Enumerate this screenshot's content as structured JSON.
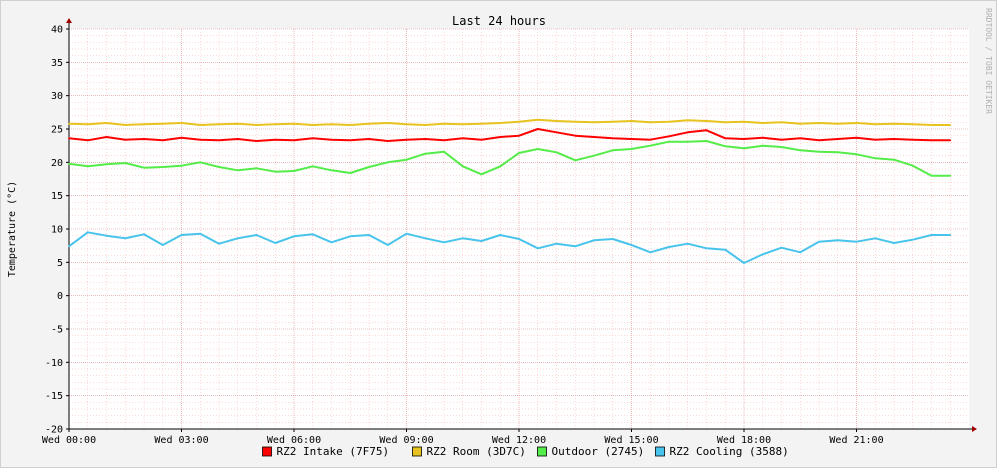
{
  "chart_data": {
    "type": "line",
    "title": "Last 24 hours",
    "ylabel": "Temperature (°C)",
    "xlabel": "",
    "watermark": "RRDTOOL / TOBI OETIKER",
    "ylim": [
      -20,
      40
    ],
    "yticks": [
      40,
      35,
      30,
      25,
      20,
      15,
      10,
      5,
      0,
      -5,
      -10,
      -15,
      -20
    ],
    "xlim": [
      0,
      24
    ],
    "xticks": [
      {
        "value": 0,
        "label": "Wed 00:00"
      },
      {
        "value": 3,
        "label": "Wed 03:00"
      },
      {
        "value": 6,
        "label": "Wed 06:00"
      },
      {
        "value": 9,
        "label": "Wed 09:00"
      },
      {
        "value": 12,
        "label": "Wed 12:00"
      },
      {
        "value": 15,
        "label": "Wed 15:00"
      },
      {
        "value": 18,
        "label": "Wed 18:00"
      },
      {
        "value": 21,
        "label": "Wed 21:00"
      }
    ],
    "grid": true,
    "legend_position": "bottom",
    "x": [
      0,
      0.5,
      1,
      1.5,
      2,
      2.5,
      3,
      3.5,
      4,
      4.5,
      5,
      5.5,
      6,
      6.5,
      7,
      7.5,
      8,
      8.5,
      9,
      9.5,
      10,
      10.5,
      11,
      11.5,
      12,
      12.5,
      13,
      13.5,
      14,
      14.5,
      15,
      15.5,
      16,
      16.5,
      17,
      17.5,
      18,
      18.5,
      19,
      19.5,
      20,
      20.5,
      21,
      21.5,
      22,
      22.5,
      23,
      23.5
    ],
    "series": [
      {
        "name": "RZ2 Intake (7F75)",
        "color": "#ff0000",
        "values": [
          23.6,
          23.3,
          23.8,
          23.4,
          23.5,
          23.3,
          23.7,
          23.4,
          23.3,
          23.5,
          23.2,
          23.4,
          23.3,
          23.6,
          23.4,
          23.3,
          23.5,
          23.2,
          23.4,
          23.5,
          23.3,
          23.6,
          23.4,
          23.8,
          24.0,
          25.0,
          24.5,
          24.0,
          23.8,
          23.6,
          23.5,
          23.4,
          23.9,
          24.5,
          24.8,
          23.6,
          23.5,
          23.7,
          23.4,
          23.6,
          23.3,
          23.5,
          23.7,
          23.4,
          23.5,
          23.4,
          23.3,
          23.3
        ]
      },
      {
        "name": "RZ2 Room (3D7C)",
        "color": "#e6c31e",
        "values": [
          25.8,
          25.7,
          25.9,
          25.6,
          25.7,
          25.8,
          25.9,
          25.6,
          25.7,
          25.8,
          25.6,
          25.7,
          25.8,
          25.6,
          25.7,
          25.6,
          25.8,
          25.9,
          25.7,
          25.6,
          25.8,
          25.7,
          25.8,
          25.9,
          26.1,
          26.4,
          26.2,
          26.1,
          26.0,
          26.1,
          26.2,
          26.0,
          26.1,
          26.3,
          26.2,
          26.0,
          26.1,
          25.9,
          26.0,
          25.8,
          25.9,
          25.8,
          25.9,
          25.7,
          25.8,
          25.7,
          25.6,
          25.6
        ]
      },
      {
        "name": "Outdoor (2745)",
        "color": "#54ec48",
        "values": [
          19.8,
          19.4,
          19.7,
          19.9,
          19.2,
          19.3,
          19.5,
          20.0,
          19.3,
          18.8,
          19.1,
          18.6,
          18.7,
          19.4,
          18.8,
          18.4,
          19.3,
          20.0,
          20.4,
          21.3,
          21.6,
          19.4,
          18.2,
          19.4,
          21.4,
          22.0,
          21.5,
          20.3,
          21.0,
          21.8,
          22.0,
          22.5,
          23.1,
          23.1,
          23.2,
          22.4,
          22.1,
          22.5,
          22.3,
          21.8,
          21.6,
          21.5,
          21.2,
          20.6,
          20.4,
          19.5,
          18.0,
          18.0
        ]
      },
      {
        "name": "RZ2 Cooling (3588)",
        "color": "#48c4ec",
        "values": [
          7.4,
          9.5,
          9.0,
          8.6,
          9.2,
          7.6,
          9.1,
          9.3,
          7.8,
          8.6,
          9.1,
          7.9,
          8.9,
          9.2,
          8.0,
          8.9,
          9.1,
          7.6,
          9.3,
          8.6,
          8.0,
          8.6,
          8.2,
          9.1,
          8.5,
          7.1,
          7.8,
          7.4,
          8.3,
          8.5,
          7.6,
          6.5,
          7.3,
          7.8,
          7.1,
          6.9,
          4.9,
          6.2,
          7.2,
          6.5,
          8.1,
          8.3,
          8.1,
          8.6,
          7.9,
          8.4,
          9.1,
          9.1
        ]
      }
    ]
  }
}
